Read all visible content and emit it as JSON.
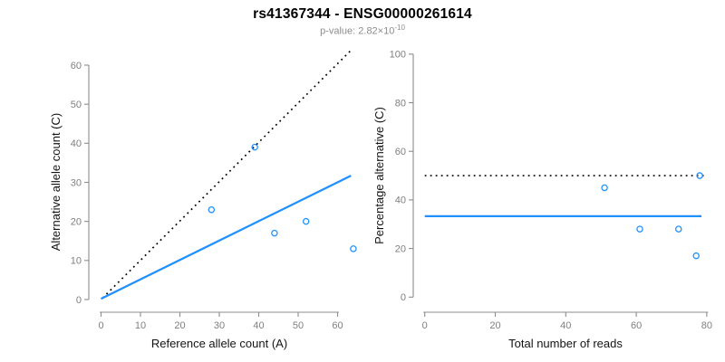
{
  "header": {
    "title": "rs41367344 - ENSG00000261614",
    "subtitle_base": "p-value: 2.82×10",
    "subtitle_exponent": "-10"
  },
  "colors": {
    "accent_blue": "#1E90FF",
    "dotted_line": "#000000",
    "axis_line": "#8c8c8c",
    "tick_label": "#7f7f7f",
    "axis_title": "#141414",
    "title_text": "#000000",
    "subtitle_text": "#8c8c8c",
    "background": "#ffffff"
  },
  "chart_data": [
    {
      "type": "scatter",
      "title": "",
      "xlabel": "Reference allele count (A)",
      "ylabel": "Alternative allele count (C)",
      "xlim": [
        0,
        66
      ],
      "ylim": [
        0,
        64
      ],
      "xticks": [
        0,
        10,
        20,
        30,
        40,
        50,
        60
      ],
      "yticks": [
        0,
        10,
        20,
        30,
        40,
        50,
        60
      ],
      "grid": false,
      "legend": "none",
      "point_color": "#1E90FF",
      "points": [
        {
          "x": 28,
          "y": 23
        },
        {
          "x": 39,
          "y": 39
        },
        {
          "x": 44,
          "y": 17
        },
        {
          "x": 52,
          "y": 20
        },
        {
          "x": 64,
          "y": 13
        }
      ],
      "lines": [
        {
          "name": "identity-dotted-line",
          "style": "dotted",
          "color": "#000000",
          "width": 1.7,
          "x1": 0.4,
          "y1": 0.4,
          "x2": 63.8,
          "y2": 64.2
        },
        {
          "name": "observed-ratio-line",
          "style": "solid",
          "color": "#1E90FF",
          "width": 2.2,
          "x1": 0,
          "y1": 0.2,
          "x2": 63.4,
          "y2": 31.7
        }
      ]
    },
    {
      "type": "scatter",
      "title": "",
      "xlabel": "Total number of reads",
      "ylabel": "Percentage alternative (C)",
      "xlim": [
        0,
        80
      ],
      "ylim": [
        0,
        100
      ],
      "xticks": [
        0,
        20,
        40,
        60,
        80
      ],
      "yticks": [
        0,
        20,
        40,
        60,
        80,
        100
      ],
      "grid": false,
      "legend": "none",
      "point_color": "#1E90FF",
      "points": [
        {
          "x": 51,
          "y": 45
        },
        {
          "x": 61,
          "y": 28
        },
        {
          "x": 72,
          "y": 28
        },
        {
          "x": 77,
          "y": 17
        },
        {
          "x": 78,
          "y": 50
        }
      ],
      "lines": [
        {
          "name": "expected-50pct-dotted-line",
          "style": "dotted",
          "color": "#000000",
          "width": 1.7,
          "x1": 0,
          "y1": 50,
          "x2": 79.8,
          "y2": 50
        },
        {
          "name": "observed-pct-line",
          "style": "solid",
          "color": "#1E90FF",
          "width": 2.2,
          "x1": 0,
          "y1": 33.3,
          "x2": 78.5,
          "y2": 33.3
        }
      ]
    }
  ]
}
